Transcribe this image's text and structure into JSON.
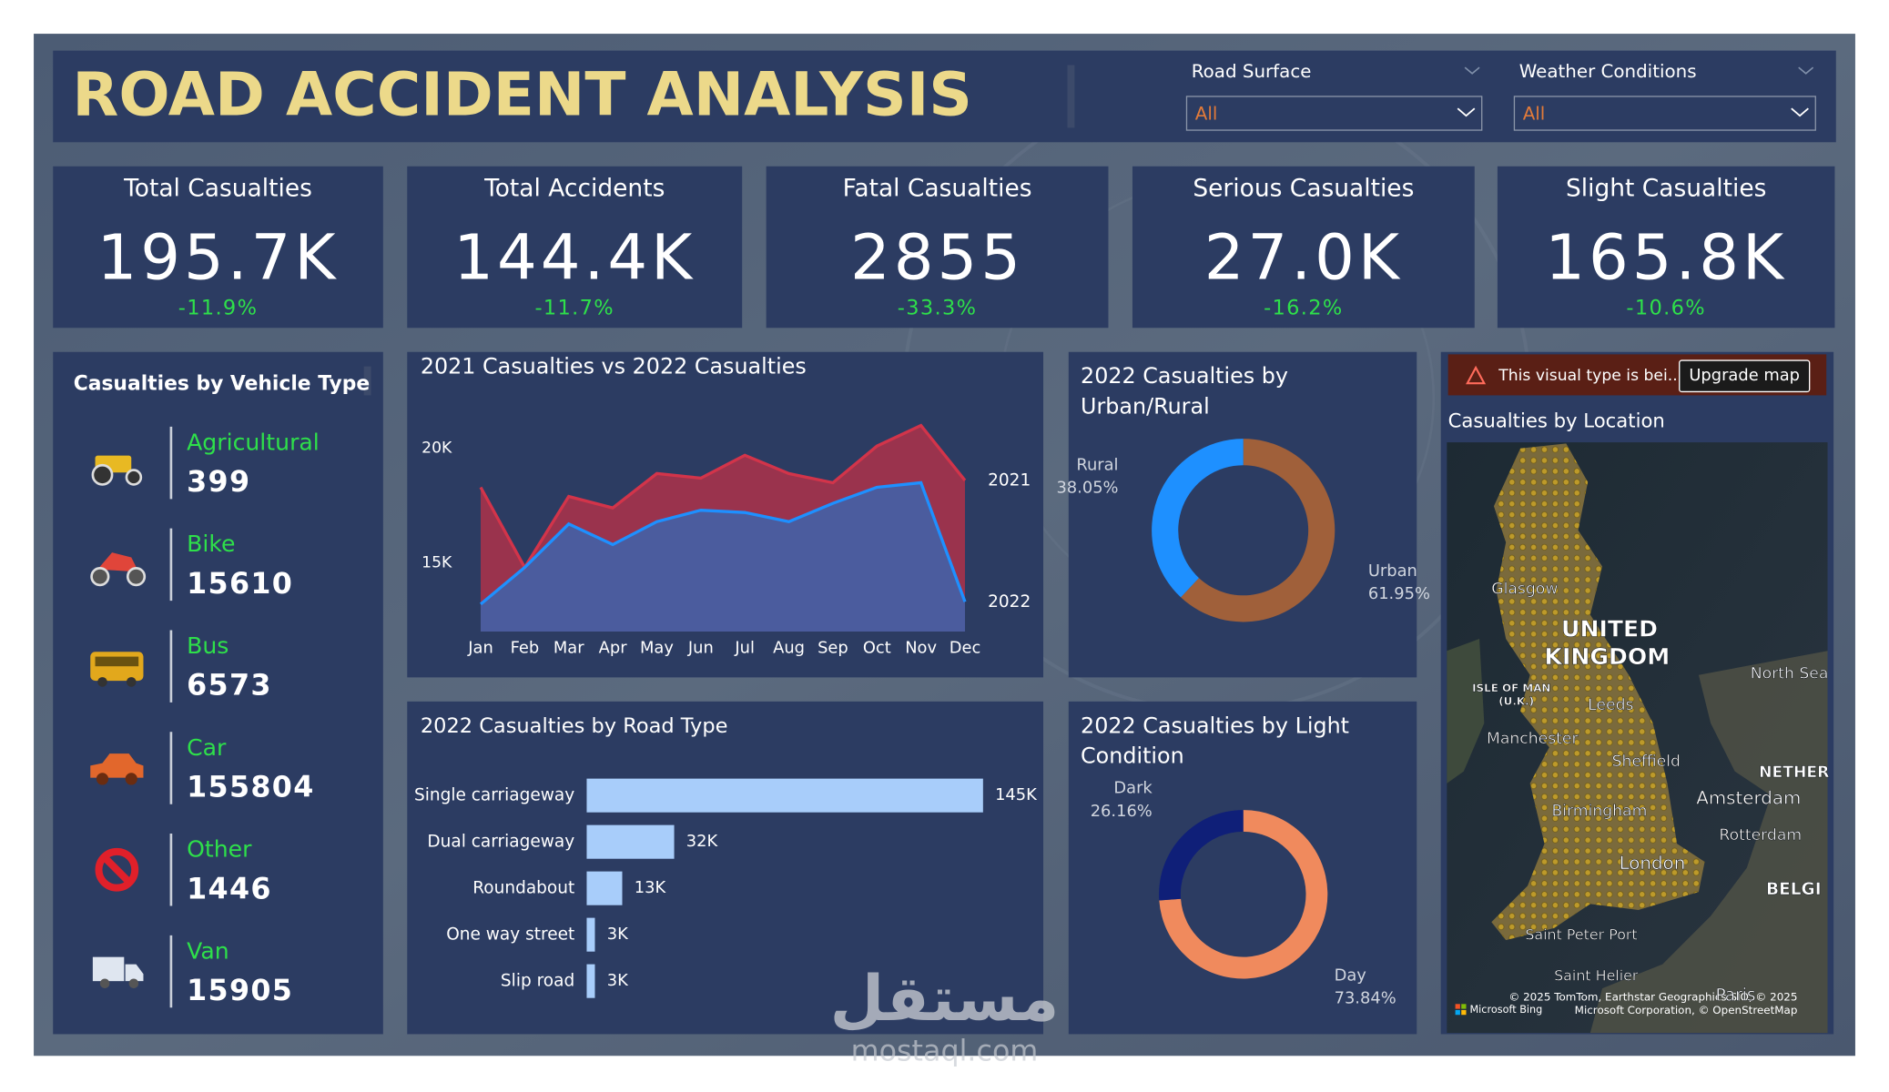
{
  "header": {
    "title": "ROAD ACCIDENT ANALYSIS"
  },
  "filters": [
    {
      "label": "Road Surface",
      "value": "All"
    },
    {
      "label": "Weather Conditions",
      "value": "All"
    }
  ],
  "kpis": [
    {
      "title": "Total Casualties",
      "value": "195.7K",
      "change": "-11.9%"
    },
    {
      "title": "Total Accidents",
      "value": "144.4K",
      "change": "-11.7%"
    },
    {
      "title": "Fatal Casualties",
      "value": "2855",
      "change": "-33.3%"
    },
    {
      "title": "Serious Casualties",
      "value": "27.0K",
      "change": "-16.2%"
    },
    {
      "title": "Slight Casualties",
      "value": "165.8K",
      "change": "-10.6%"
    }
  ],
  "vehicle_panel": {
    "title": "Casualties by Vehicle Type",
    "items": [
      {
        "name": "Agricultural",
        "value": 399
      },
      {
        "name": "Bike",
        "value": 15610
      },
      {
        "name": "Bus",
        "value": 6573
      },
      {
        "name": "Car",
        "value": 155804
      },
      {
        "name": "Other",
        "value": 1446
      },
      {
        "name": "Van",
        "value": 15905
      }
    ]
  },
  "chart_data": [
    {
      "type": "area",
      "title": "2021 Casualties vs 2022 Casualties",
      "categories": [
        "Jan",
        "Feb",
        "Mar",
        "Apr",
        "May",
        "Jun",
        "Jul",
        "Aug",
        "Sep",
        "Oct",
        "Nov",
        "Dec"
      ],
      "series": [
        {
          "name": "2021",
          "color": "#d2344a",
          "values": [
            18300,
            14800,
            17900,
            17400,
            18900,
            18700,
            19700,
            18900,
            18500,
            20100,
            21000,
            18600
          ]
        },
        {
          "name": "2022",
          "color": "#1e90ff",
          "values": [
            13200,
            14800,
            16700,
            15800,
            16800,
            17300,
            17200,
            16800,
            17600,
            18300,
            18500,
            13300
          ]
        }
      ],
      "ylim": [
        12000,
        22000
      ],
      "yticks": [
        {
          "value": 15000,
          "label": "15K"
        },
        {
          "value": 20000,
          "label": "20K"
        }
      ]
    },
    {
      "type": "barh",
      "title": "2022 Casualties by Road Type",
      "categories": [
        "Single carriageway",
        "Dual carriageway",
        "Roundabout",
        "One way street",
        "Slip road"
      ],
      "values": [
        145000,
        32000,
        13000,
        3000,
        3000
      ],
      "value_labels": [
        "145K",
        "32K",
        "13K",
        "3K",
        "3K"
      ],
      "color": "#a8cdfa",
      "xlim": [
        0,
        145000
      ]
    },
    {
      "type": "donut",
      "title": "2022 Casualties by Urban/Rural",
      "categories": [
        "Urban",
        "Rural"
      ],
      "values": [
        61.95,
        38.05
      ],
      "value_labels": [
        "61.95%",
        "38.05%"
      ],
      "colors": [
        "#a0603a",
        "#1e90ff"
      ]
    },
    {
      "type": "donut",
      "title": "2022 Casualties by Light Condition",
      "categories": [
        "Day",
        "Dark"
      ],
      "values": [
        73.84,
        26.16
      ],
      "value_labels": [
        "73.84%",
        "26.16%"
      ],
      "colors": [
        "#f08a5d",
        "#0f1f78"
      ]
    }
  ],
  "map": {
    "warning": "This visual type is bei...",
    "button": "Upgrade map",
    "title": "Casualties by Location",
    "labels": [
      "Glasgow",
      "UNITED",
      "KINGDOM",
      "North Sea",
      "ISLE OF MAN",
      "(U.K.)",
      "Leeds",
      "Manchester",
      "Sheffield",
      "NETHER",
      "Amsterdam",
      "Rotterdam",
      "Birmingham",
      "London",
      "BELGI",
      "Saint Peter Port",
      "Saint Helier",
      "Paris"
    ],
    "attribution": "© 2025 TomTom, Earthstar Geographics SIO, © 2025 Microsoft Corporation, © OpenStreetMap",
    "brand": "Microsoft Bing"
  },
  "watermark": {
    "arabic": "مستقل",
    "latin": "mostaql.com"
  }
}
